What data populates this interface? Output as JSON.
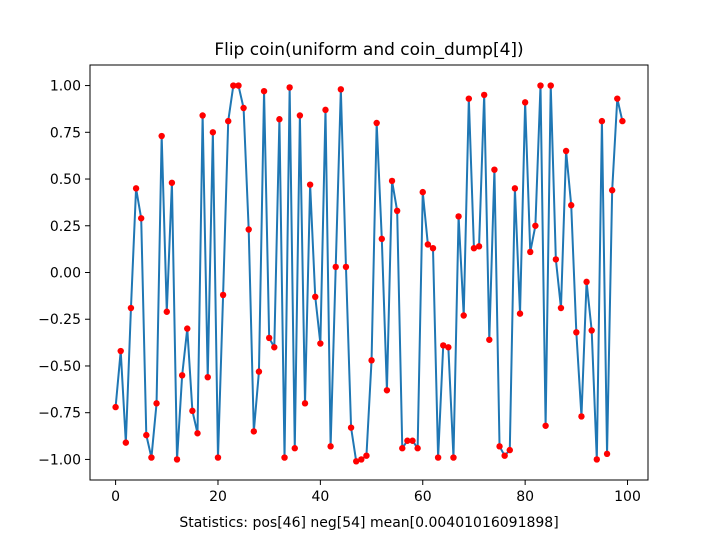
{
  "chart_data": {
    "type": "line",
    "title": "Flip coin(uniform and coin_dump[4])",
    "xlabel": "Statistics: pos[46] neg[54] mean[0.00401016091898]",
    "ylabel": "",
    "xlim": [
      -5,
      104
    ],
    "ylim": [
      -1.11,
      1.11
    ],
    "xticks": [
      0,
      20,
      40,
      60,
      80,
      100
    ],
    "yticks": [
      -1.0,
      -0.75,
      -0.5,
      -0.25,
      0.0,
      0.25,
      0.5,
      0.75,
      1.0
    ],
    "ytick_labels": [
      "−1.00",
      "−0.75",
      "−0.50",
      "−0.25",
      "0.00",
      "0.25",
      "0.50",
      "0.75",
      "1.00"
    ],
    "grid": false,
    "line_color": "#1f77b4",
    "marker_color": "#ff0000",
    "x": [
      0,
      1,
      2,
      3,
      4,
      5,
      6,
      7,
      8,
      9,
      10,
      11,
      12,
      13,
      14,
      15,
      16,
      17,
      18,
      19,
      20,
      21,
      22,
      23,
      24,
      25,
      26,
      27,
      28,
      29,
      30,
      31,
      32,
      33,
      34,
      35,
      36,
      37,
      38,
      39,
      40,
      41,
      42,
      43,
      44,
      45,
      46,
      47,
      48,
      49,
      50,
      51,
      52,
      53,
      54,
      55,
      56,
      57,
      58,
      59,
      60,
      61,
      62,
      63,
      64,
      65,
      66,
      67,
      68,
      69,
      70,
      71,
      72,
      73,
      74,
      75,
      76,
      77,
      78,
      79,
      80,
      81,
      82,
      83,
      84,
      85,
      86,
      87,
      88,
      89,
      90,
      91,
      92,
      93,
      94,
      95,
      96,
      97,
      98,
      99
    ],
    "y": [
      -0.72,
      -0.42,
      -0.91,
      -0.19,
      0.45,
      0.29,
      -0.87,
      -0.99,
      -0.7,
      0.73,
      -0.21,
      0.48,
      -1.0,
      -0.55,
      -0.3,
      -0.74,
      -0.86,
      0.84,
      -0.56,
      0.75,
      -0.99,
      -0.12,
      0.81,
      1.0,
      1.0,
      0.88,
      0.23,
      -0.85,
      -0.53,
      0.97,
      -0.35,
      -0.4,
      0.82,
      -0.99,
      0.99,
      -0.94,
      0.84,
      -0.7,
      0.47,
      -0.13,
      -0.38,
      0.87,
      -0.93,
      0.03,
      0.98,
      0.03,
      -0.83,
      -1.01,
      -1.0,
      -0.98,
      -0.47,
      0.8,
      0.18,
      -0.63,
      0.49,
      0.33,
      -0.94,
      -0.9,
      -0.9,
      -0.94,
      0.43,
      0.15,
      0.13,
      -0.99,
      -0.39,
      -0.4,
      -0.99,
      0.3,
      -0.23,
      0.93,
      0.13,
      0.14,
      0.95,
      -0.36,
      0.55,
      -0.93,
      -0.98,
      -0.95,
      0.45,
      -0.22,
      0.91,
      0.11,
      0.25,
      1.0,
      -0.82,
      1.0,
      0.07,
      -0.19,
      0.65,
      0.36,
      -0.32,
      -0.77,
      -0.05,
      -0.31,
      -1.0,
      0.81,
      -0.97,
      0.44,
      0.93,
      0.81
    ]
  }
}
